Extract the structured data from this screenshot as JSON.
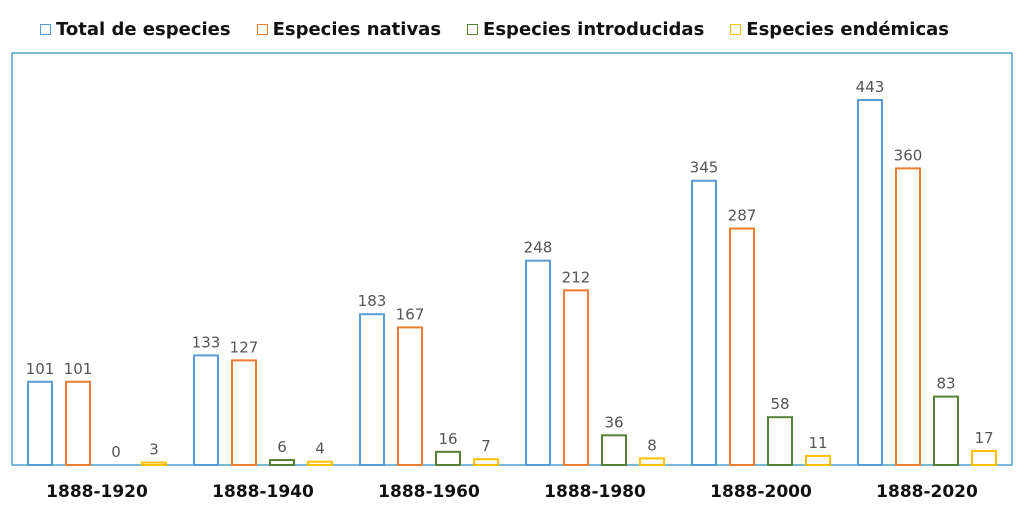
{
  "chart_data": {
    "type": "bar",
    "title": "",
    "xlabel": "",
    "ylabel": "",
    "categories": [
      "1888-1920",
      "1888-1940",
      "1888-1960",
      "1888-1980",
      "1888-2000",
      "1888-2020"
    ],
    "series": [
      {
        "name": "Total de especies",
        "color": "#5b9bd5",
        "values": [
          101,
          133,
          183,
          248,
          345,
          443
        ]
      },
      {
        "name": "Especies nativas",
        "color": "#ed7d31",
        "values": [
          101,
          127,
          167,
          212,
          287,
          360
        ]
      },
      {
        "name": "Especies introducidas",
        "color": "#548235",
        "values": [
          0,
          6,
          16,
          36,
          58,
          83
        ]
      },
      {
        "name": "Especies endémicas",
        "color": "#ffc000",
        "values": [
          3,
          4,
          7,
          8,
          11,
          17
        ]
      }
    ],
    "ylim": [
      0,
      443
    ],
    "grid": false,
    "legend_position": "top",
    "plot_border_color": "#4ba3c7"
  }
}
